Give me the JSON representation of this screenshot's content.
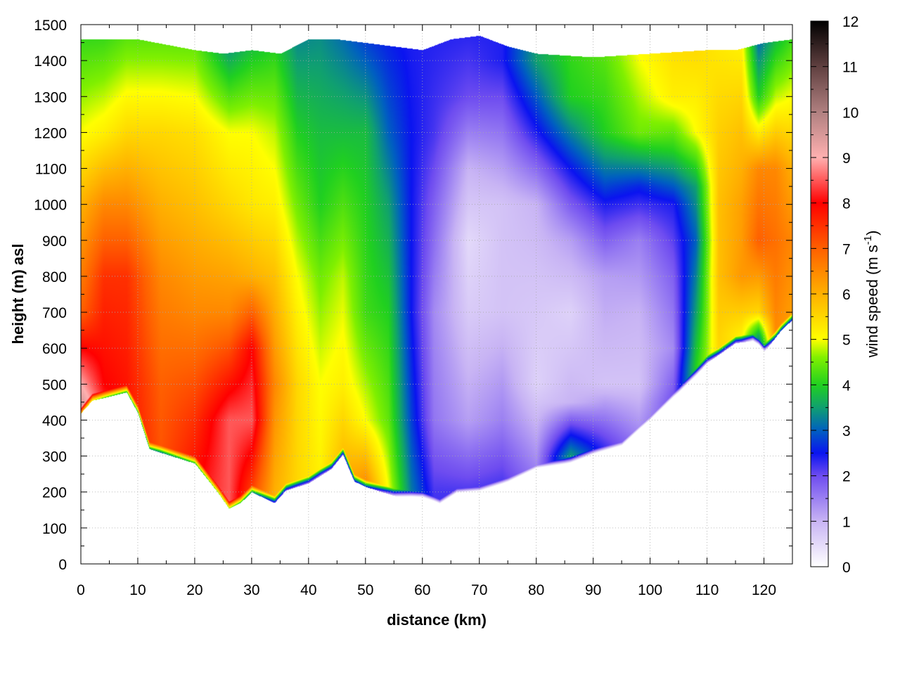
{
  "chart_data": {
    "type": "heatmap",
    "xlabel": "distance (km)",
    "ylabel": "height (m) asl",
    "colorbar_label_main": "wind speed (m s",
    "colorbar_label_sup": "-1",
    "colorbar_label_end": ")",
    "xlim": [
      0,
      125
    ],
    "ylim": [
      0,
      1500
    ],
    "xticks": [
      0,
      10,
      20,
      30,
      40,
      50,
      60,
      70,
      80,
      90,
      100,
      110,
      120
    ],
    "yticks": [
      0,
      100,
      200,
      300,
      400,
      500,
      600,
      700,
      800,
      900,
      1000,
      1100,
      1200,
      1300,
      1400,
      1500
    ],
    "cb_range": [
      0,
      12
    ],
    "cb_ticks": [
      0,
      1,
      2,
      3,
      4,
      5,
      6,
      7,
      8,
      9,
      10,
      11,
      12
    ],
    "grid": true,
    "palette": [
      [
        0,
        "#ffffff"
      ],
      [
        1,
        "#c8b4f4"
      ],
      [
        2,
        "#6e4cf0"
      ],
      [
        2.5,
        "#0a14f0"
      ],
      [
        3,
        "#0060c0"
      ],
      [
        3.5,
        "#10a070"
      ],
      [
        4,
        "#20d020"
      ],
      [
        4.6,
        "#80f000"
      ],
      [
        5,
        "#ffff00"
      ],
      [
        6,
        "#ffb000"
      ],
      [
        7,
        "#ff6000"
      ],
      [
        8,
        "#ff0000"
      ],
      [
        9,
        "#ffb0b0"
      ],
      [
        10,
        "#b08080"
      ],
      [
        11,
        "#604040"
      ],
      [
        12,
        "#000000"
      ]
    ],
    "terrain": [
      [
        0,
        420
      ],
      [
        2,
        455
      ],
      [
        4,
        462
      ],
      [
        6,
        470
      ],
      [
        8,
        478
      ],
      [
        10,
        420
      ],
      [
        12,
        320
      ],
      [
        16,
        300
      ],
      [
        20,
        280
      ],
      [
        24,
        200
      ],
      [
        26,
        155
      ],
      [
        28,
        170
      ],
      [
        30,
        200
      ],
      [
        34,
        170
      ],
      [
        36,
        205
      ],
      [
        40,
        225
      ],
      [
        44,
        265
      ],
      [
        46,
        305
      ],
      [
        48,
        230
      ],
      [
        50,
        215
      ],
      [
        55,
        190
      ],
      [
        60,
        180
      ],
      [
        63,
        160
      ],
      [
        66,
        190
      ],
      [
        70,
        195
      ],
      [
        75,
        220
      ],
      [
        80,
        255
      ],
      [
        85,
        275
      ],
      [
        90,
        300
      ],
      [
        95,
        320
      ],
      [
        100,
        390
      ],
      [
        105,
        470
      ],
      [
        110,
        560
      ],
      [
        115,
        615
      ],
      [
        118,
        620
      ],
      [
        120,
        590
      ],
      [
        123,
        650
      ],
      [
        125,
        680
      ]
    ],
    "top_boundary": [
      [
        0,
        1460
      ],
      [
        10,
        1460
      ],
      [
        20,
        1430
      ],
      [
        25,
        1420
      ],
      [
        30,
        1430
      ],
      [
        35,
        1420
      ],
      [
        40,
        1460
      ],
      [
        45,
        1460
      ],
      [
        50,
        1450
      ],
      [
        55,
        1440
      ],
      [
        60,
        1430
      ],
      [
        65,
        1460
      ],
      [
        70,
        1470
      ],
      [
        75,
        1440
      ],
      [
        80,
        1420
      ],
      [
        90,
        1410
      ],
      [
        100,
        1420
      ],
      [
        110,
        1430
      ],
      [
        115,
        1430
      ],
      [
        120,
        1450
      ],
      [
        125,
        1460
      ]
    ],
    "field_columns": [
      {
        "x": 0,
        "profile": [
          [
            0,
            9
          ],
          [
            200,
            12
          ],
          [
            400,
            10
          ],
          [
            700,
            7
          ],
          [
            1000,
            6
          ],
          [
            1200,
            5
          ],
          [
            1500,
            4
          ]
        ]
      },
      {
        "x": 4,
        "profile": [
          [
            0,
            9
          ],
          [
            200,
            9.5
          ],
          [
            500,
            8
          ],
          [
            800,
            7.5
          ],
          [
            1000,
            6.5
          ],
          [
            1200,
            5.2
          ],
          [
            1500,
            4
          ]
        ]
      },
      {
        "x": 8,
        "profile": [
          [
            0,
            8
          ],
          [
            200,
            8
          ],
          [
            500,
            7.8
          ],
          [
            800,
            7.5
          ],
          [
            1000,
            6.5
          ],
          [
            1200,
            5.5
          ],
          [
            1500,
            4.2
          ]
        ]
      },
      {
        "x": 14,
        "profile": [
          [
            0,
            7
          ],
          [
            200,
            7.2
          ],
          [
            500,
            7
          ],
          [
            800,
            6.5
          ],
          [
            1000,
            6
          ],
          [
            1200,
            5.5
          ],
          [
            1500,
            4.2
          ]
        ]
      },
      {
        "x": 20,
        "profile": [
          [
            0,
            7.5
          ],
          [
            200,
            8
          ],
          [
            400,
            7.5
          ],
          [
            700,
            6.5
          ],
          [
            1000,
            5.8
          ],
          [
            1200,
            5.4
          ],
          [
            1500,
            4.2
          ]
        ]
      },
      {
        "x": 26,
        "profile": [
          [
            0,
            8
          ],
          [
            150,
            8.5
          ],
          [
            400,
            8.5
          ],
          [
            700,
            6.5
          ],
          [
            1000,
            5.5
          ],
          [
            1200,
            5
          ],
          [
            1500,
            3
          ]
        ]
      },
      {
        "x": 30,
        "profile": [
          [
            0,
            6.5
          ],
          [
            150,
            7
          ],
          [
            400,
            8.5
          ],
          [
            600,
            8
          ],
          [
            800,
            6
          ],
          [
            1000,
            5.3
          ],
          [
            1200,
            5
          ],
          [
            1500,
            3.5
          ]
        ]
      },
      {
        "x": 34,
        "profile": [
          [
            0,
            5.5
          ],
          [
            200,
            6
          ],
          [
            500,
            6.5
          ],
          [
            800,
            5.8
          ],
          [
            1000,
            5.2
          ],
          [
            1200,
            4.8
          ],
          [
            1500,
            3.8
          ]
        ]
      },
      {
        "x": 38,
        "profile": [
          [
            0,
            5.5
          ],
          [
            200,
            5.5
          ],
          [
            500,
            5.5
          ],
          [
            800,
            5
          ],
          [
            1000,
            4.5
          ],
          [
            1200,
            4
          ],
          [
            1500,
            3.2
          ]
        ]
      },
      {
        "x": 42,
        "profile": [
          [
            0,
            5.3
          ],
          [
            200,
            5.2
          ],
          [
            500,
            5
          ],
          [
            800,
            4.5
          ],
          [
            1000,
            4
          ],
          [
            1200,
            3.8
          ],
          [
            1500,
            3.3
          ]
        ]
      },
      {
        "x": 46,
        "profile": [
          [
            0,
            6
          ],
          [
            250,
            6
          ],
          [
            500,
            5.2
          ],
          [
            800,
            4.8
          ],
          [
            1000,
            4.3
          ],
          [
            1200,
            3.8
          ],
          [
            1500,
            3
          ]
        ]
      },
      {
        "x": 50,
        "profile": [
          [
            0,
            6.5
          ],
          [
            220,
            6.5
          ],
          [
            400,
            5
          ],
          [
            700,
            4.2
          ],
          [
            1000,
            4
          ],
          [
            1200,
            3.8
          ],
          [
            1500,
            2.6
          ]
        ]
      },
      {
        "x": 54,
        "profile": [
          [
            0,
            5.5
          ],
          [
            200,
            5
          ],
          [
            400,
            4.4
          ],
          [
            700,
            4
          ],
          [
            1000,
            3.5
          ],
          [
            1200,
            3
          ],
          [
            1500,
            2.5
          ]
        ]
      },
      {
        "x": 58,
        "profile": [
          [
            0,
            3.5
          ],
          [
            200,
            3.2
          ],
          [
            400,
            2.8
          ],
          [
            700,
            2.5
          ],
          [
            1000,
            2.5
          ],
          [
            1200,
            2.5
          ],
          [
            1500,
            2.4
          ]
        ]
      },
      {
        "x": 62,
        "profile": [
          [
            0,
            2.5
          ],
          [
            200,
            2.2
          ],
          [
            400,
            1.6
          ],
          [
            700,
            1.4
          ],
          [
            1000,
            1.8
          ],
          [
            1200,
            2.2
          ],
          [
            1500,
            2.4
          ]
        ]
      },
      {
        "x": 68,
        "profile": [
          [
            0,
            2.5
          ],
          [
            200,
            2.2
          ],
          [
            400,
            1.2
          ],
          [
            700,
            0.7
          ],
          [
            900,
            0.5
          ],
          [
            1100,
            1
          ],
          [
            1300,
            2
          ],
          [
            1500,
            2.4
          ]
        ]
      },
      {
        "x": 74,
        "profile": [
          [
            0,
            2.3
          ],
          [
            200,
            2.3
          ],
          [
            400,
            1.5
          ],
          [
            700,
            0.8
          ],
          [
            1000,
            0.8
          ],
          [
            1200,
            1.6
          ],
          [
            1400,
            2.4
          ],
          [
            1500,
            2.4
          ]
        ]
      },
      {
        "x": 80,
        "profile": [
          [
            0,
            2.5
          ],
          [
            260,
            1.5
          ],
          [
            500,
            0.6
          ],
          [
            800,
            0.8
          ],
          [
            1000,
            1
          ],
          [
            1200,
            2.4
          ],
          [
            1400,
            3.5
          ],
          [
            1500,
            3.5
          ]
        ]
      },
      {
        "x": 86,
        "profile": [
          [
            0,
            3.5
          ],
          [
            300,
            3.5
          ],
          [
            450,
            1
          ],
          [
            700,
            0.6
          ],
          [
            900,
            1.2
          ],
          [
            1100,
            2.5
          ],
          [
            1300,
            4
          ],
          [
            1500,
            4.2
          ]
        ]
      },
      {
        "x": 92,
        "profile": [
          [
            0,
            2.5
          ],
          [
            320,
            2.3
          ],
          [
            500,
            0.8
          ],
          [
            800,
            1.2
          ],
          [
            1000,
            2.4
          ],
          [
            1200,
            4
          ],
          [
            1500,
            4.5
          ]
        ]
      },
      {
        "x": 98,
        "profile": [
          [
            0,
            2
          ],
          [
            350,
            1.5
          ],
          [
            500,
            0.8
          ],
          [
            700,
            1
          ],
          [
            900,
            1.5
          ],
          [
            1050,
            2.6
          ],
          [
            1200,
            4.5
          ],
          [
            1500,
            5.2
          ]
        ]
      },
      {
        "x": 104,
        "profile": [
          [
            0,
            2.2
          ],
          [
            450,
            2
          ],
          [
            600,
            1.4
          ],
          [
            800,
            1.8
          ],
          [
            1000,
            2.4
          ],
          [
            1150,
            4
          ],
          [
            1300,
            5.2
          ],
          [
            1500,
            5.5
          ]
        ]
      },
      {
        "x": 108,
        "profile": [
          [
            0,
            4
          ],
          [
            550,
            4
          ],
          [
            700,
            3.5
          ],
          [
            900,
            3
          ],
          [
            1050,
            3.5
          ],
          [
            1200,
            5
          ],
          [
            1500,
            5.6
          ]
        ]
      },
      {
        "x": 112,
        "profile": [
          [
            0,
            5.5
          ],
          [
            600,
            5.5
          ],
          [
            800,
            5.8
          ],
          [
            1000,
            5.8
          ],
          [
            1200,
            5.6
          ],
          [
            1500,
            5.2
          ]
        ]
      },
      {
        "x": 116,
        "profile": [
          [
            0,
            6
          ],
          [
            640,
            5.2
          ],
          [
            800,
            6.3
          ],
          [
            1000,
            6.2
          ],
          [
            1200,
            5.8
          ],
          [
            1500,
            5
          ]
        ]
      },
      {
        "x": 119,
        "profile": [
          [
            0,
            3
          ],
          [
            600,
            2.5
          ],
          [
            700,
            5.5
          ],
          [
            900,
            7
          ],
          [
            1100,
            6.5
          ],
          [
            1300,
            4
          ],
          [
            1500,
            2.8
          ]
        ]
      },
      {
        "x": 122,
        "profile": [
          [
            0,
            6
          ],
          [
            680,
            6.5
          ],
          [
            900,
            6.8
          ],
          [
            1100,
            6.5
          ],
          [
            1300,
            4.8
          ],
          [
            1500,
            3.5
          ]
        ]
      },
      {
        "x": 125,
        "profile": [
          [
            0,
            6
          ],
          [
            700,
            6.2
          ],
          [
            900,
            6.5
          ],
          [
            1100,
            6
          ],
          [
            1300,
            5
          ],
          [
            1500,
            4
          ]
        ]
      }
    ]
  }
}
